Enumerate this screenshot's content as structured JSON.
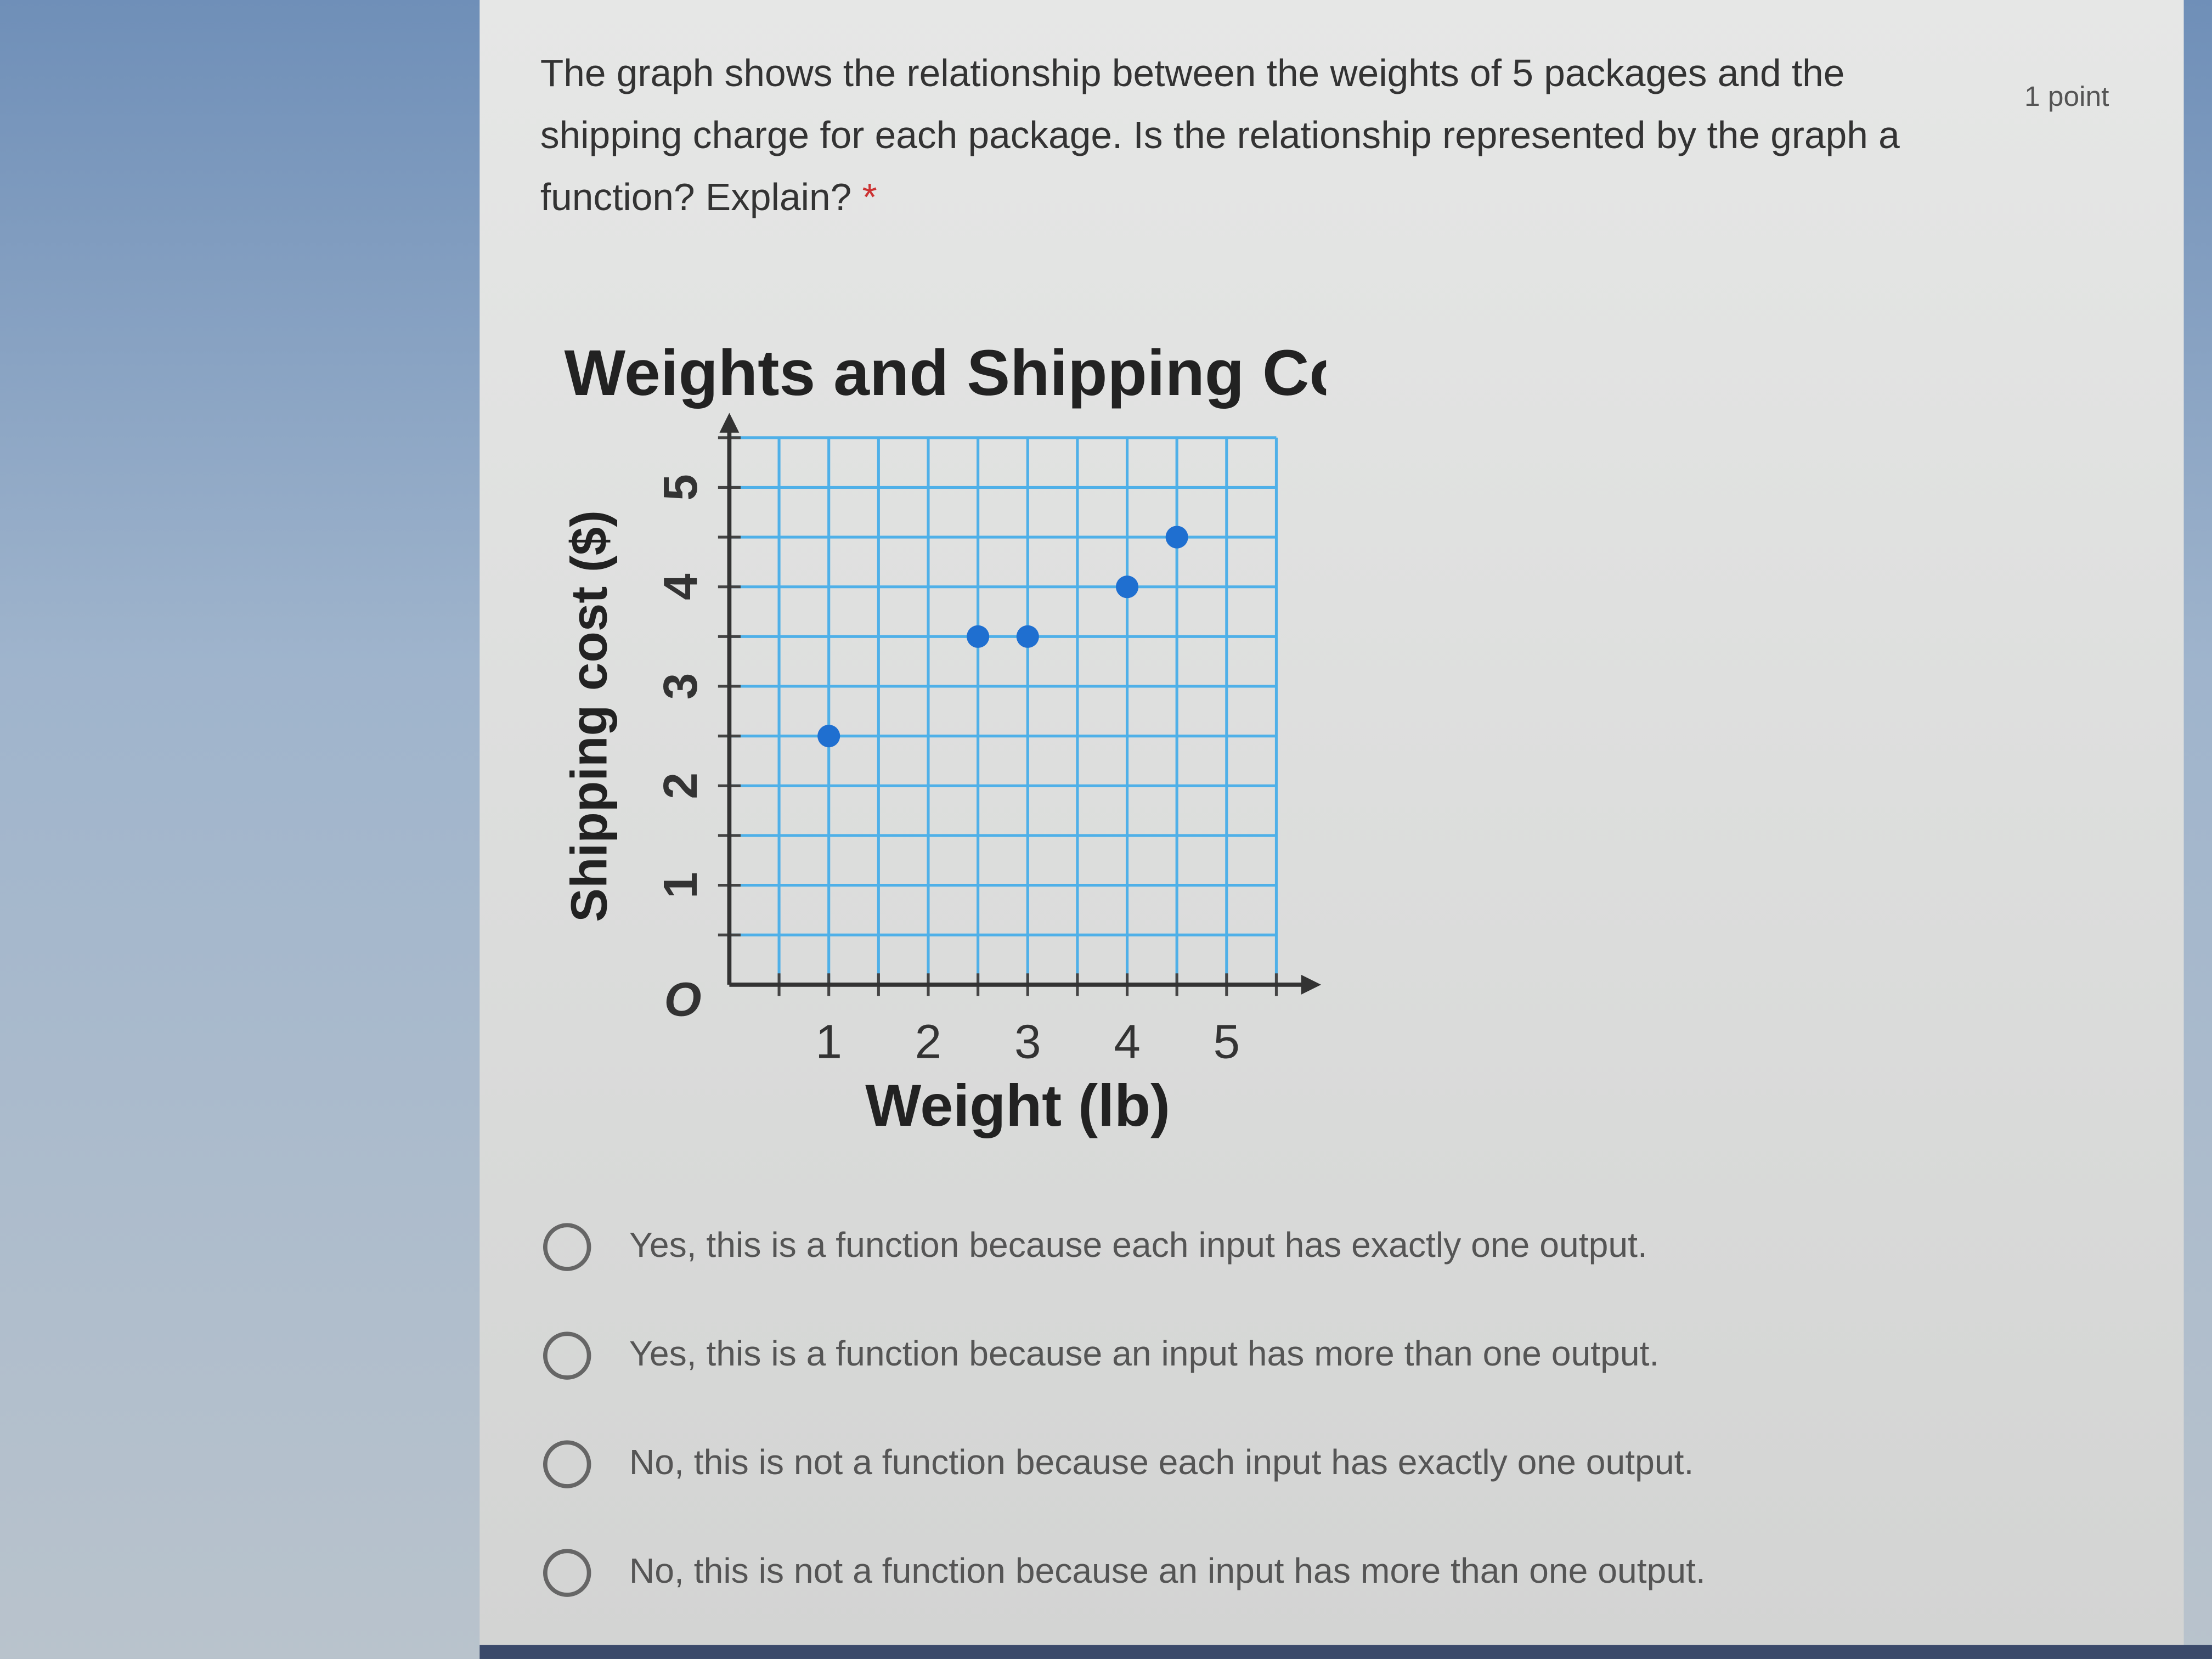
{
  "question": {
    "text": "The graph shows the relationship between the weights of 5 packages and the shipping charge for each package. Is the relationship represented by the graph a function? Explain?",
    "required_mark": "*",
    "points": "1 point"
  },
  "chart_data": {
    "type": "scatter",
    "title": "Weights and Shipping Costs",
    "xlabel": "Weight (lb)",
    "ylabel": "Shipping cost ($)",
    "origin_label": "O",
    "xlim": [
      0,
      5.5
    ],
    "ylim": [
      0,
      5.5
    ],
    "xticks": [
      "1",
      "2",
      "3",
      "4",
      "5"
    ],
    "yticks": [
      "1",
      "2",
      "3",
      "4",
      "5"
    ],
    "grid": true,
    "point_color": "#1f6fd0",
    "grid_color": "#4fb0e8",
    "points": [
      {
        "x": 1,
        "y": 2.5
      },
      {
        "x": 2.5,
        "y": 3.5
      },
      {
        "x": 3,
        "y": 3.5
      },
      {
        "x": 4,
        "y": 4
      },
      {
        "x": 4.5,
        "y": 4.5
      }
    ]
  },
  "options": [
    "Yes, this is a function because each input has exactly one output.",
    "Yes, this is a function because an input has more than one output.",
    "No, this is not a function because each input has exactly one output.",
    "No, this is not a function because an input has more than one output."
  ]
}
